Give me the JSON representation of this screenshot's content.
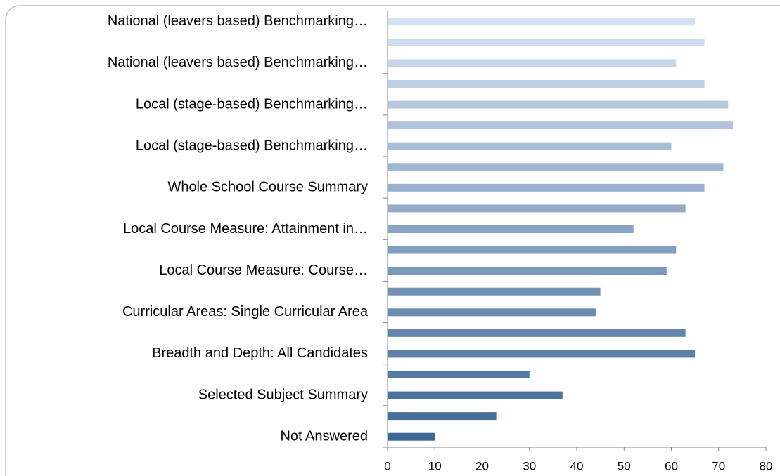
{
  "chart_data": {
    "type": "hbar",
    "categories": [
      "Not Answered",
      null,
      "Selected Subject Summary",
      null,
      "Breadth and Depth: All Candidates",
      null,
      "Curricular Areas: Single Curricular Area",
      null,
      "Local Course Measure: Course…",
      null,
      "Local Course Measure: Attainment in…",
      null,
      "Whole School Course Summary",
      null,
      "Local (stage-based) Benchmarking…",
      null,
      "Local (stage-based) Benchmarking…",
      null,
      "National (leavers based) Benchmarking…",
      null,
      "National (leavers based) Benchmarking…"
    ],
    "values": [
      10,
      23,
      37,
      30,
      65,
      63,
      44,
      45,
      59,
      61,
      52,
      63,
      67,
      71,
      60,
      73,
      72,
      67,
      61,
      67,
      65
    ],
    "color_gradient": [
      "#3d6794",
      "#d6e2f2"
    ],
    "xlim": [
      0,
      80
    ],
    "xticks": [
      0,
      10,
      20,
      30,
      40,
      50,
      60,
      70,
      80
    ],
    "grid": false
  }
}
